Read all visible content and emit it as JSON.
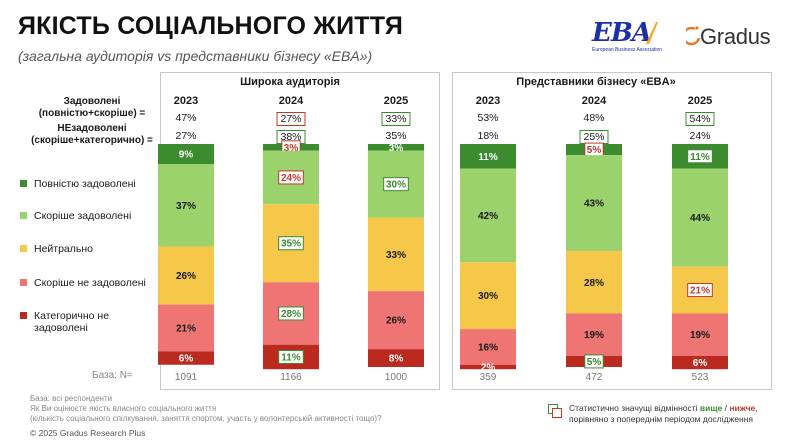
{
  "header": {
    "title": "ЯКІСТЬ СОЦІАЛЬНОГО ЖИТТЯ",
    "subtitle": "(загальна аудиторія vs представники бізнесу «EBA»)"
  },
  "logos": {
    "eba": "EBA",
    "eba_sub": "European Business Association",
    "gradus": "Gradus"
  },
  "labels": {
    "satisfied": "Задоволені\n(повністю+скоріше) =",
    "dissatisfied": "НЕзадоволені\n(скоріше+категорично) =",
    "base": "База: N="
  },
  "colors": {
    "fully_satisfied": "#3c8b2f",
    "rather_satisfied": "#9bd26b",
    "neutral": "#f5c84a",
    "rather_dissatisfied": "#ef7474",
    "categorically_dissatisfied": "#bb2a1f",
    "higher": "#3c8b2f",
    "lower": "#c0392b"
  },
  "legend": [
    {
      "key": "fully_satisfied",
      "label": "Повністю задоволені"
    },
    {
      "key": "rather_satisfied",
      "label": "Скоріше задоволені"
    },
    {
      "key": "neutral",
      "label": "Нейтрально"
    },
    {
      "key": "rather_dissatisfied",
      "label": "Скоріше не задоволені"
    },
    {
      "key": "categorically_dissatisfied",
      "label": "Категорично не\nзадоволені"
    }
  ],
  "chart_data": {
    "type": "bar",
    "stacked": true,
    "title": "ЯКІСТЬ СОЦІАЛЬНОГО ЖИТТЯ",
    "series_order": [
      "fully_satisfied",
      "rather_satisfied",
      "neutral",
      "rather_dissatisfied",
      "categorically_dissatisfied"
    ],
    "panels": [
      {
        "title": "Широка аудиторія",
        "bars": [
          {
            "year": "2023",
            "satisfied": "47%",
            "satisfied_sig": null,
            "dissatisfied": "27%",
            "dissatisfied_sig": null,
            "base": "1091",
            "values": [
              9,
              37,
              26,
              21,
              6
            ],
            "sig": [
              null,
              null,
              null,
              null,
              null
            ]
          },
          {
            "year": "2024",
            "satisfied": "27%",
            "satisfied_sig": "lower",
            "dissatisfied": "38%",
            "dissatisfied_sig": "higher",
            "base": "1166",
            "values": [
              3,
              24,
              35,
              28,
              11
            ],
            "sig": [
              "lower",
              "lower",
              "higher",
              "higher",
              "higher"
            ]
          },
          {
            "year": "2025",
            "satisfied": "33%",
            "satisfied_sig": "higher",
            "dissatisfied": "35%",
            "dissatisfied_sig": null,
            "base": "1000",
            "values": [
              3,
              30,
              33,
              26,
              8
            ],
            "sig": [
              null,
              "higher",
              null,
              null,
              null
            ]
          }
        ]
      },
      {
        "title": "Представники бізнесу «EBA»",
        "bars": [
          {
            "year": "2023",
            "satisfied": "53%",
            "satisfied_sig": null,
            "dissatisfied": "18%",
            "dissatisfied_sig": null,
            "base": "359",
            "values": [
              11,
              42,
              30,
              16,
              2
            ],
            "sig": [
              null,
              null,
              null,
              null,
              null
            ]
          },
          {
            "year": "2024",
            "satisfied": "48%",
            "satisfied_sig": null,
            "dissatisfied": "25%",
            "dissatisfied_sig": "higher",
            "base": "472",
            "values": [
              5,
              43,
              28,
              19,
              5
            ],
            "sig": [
              "lower",
              null,
              null,
              null,
              "higher"
            ]
          },
          {
            "year": "2025",
            "satisfied": "54%",
            "satisfied_sig": "higher",
            "dissatisfied": "24%",
            "dissatisfied_sig": null,
            "base": "523",
            "values": [
              11,
              44,
              21,
              19,
              6
            ],
            "sig": [
              "higher",
              null,
              "lower",
              null,
              null
            ]
          }
        ]
      }
    ],
    "ylim": [
      0,
      100
    ]
  },
  "footer": {
    "base": "База: всі респонденти",
    "question": "Як Ви оцінюєте якість власного соціального життя",
    "question_note": "(кількість соціального спілкування, заняття спортом, участь у волонтерській активності тощо)?",
    "copyright": "© 2025 Gradus Research Plus",
    "sig_prefix": "Статистично значущі відмінності",
    "sig_higher": "вище",
    "sig_sep": "/",
    "sig_lower": "нижче",
    "sig_suffix": ",",
    "sig_line2": "порівняно з попереднім періодом дослідження"
  }
}
